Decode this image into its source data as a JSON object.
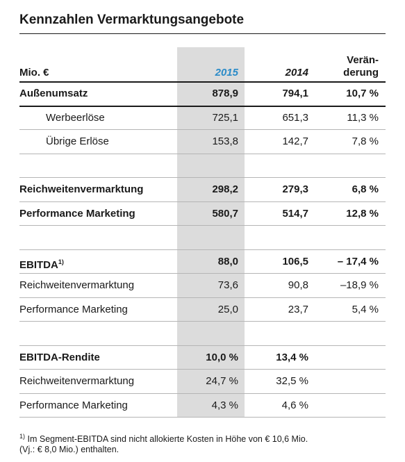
{
  "title": "Kennzahlen Vermarktungsangebote",
  "table": {
    "header": {
      "unit": "Mio. €",
      "col_2015": "2015",
      "col_2014": "2014",
      "change": [
        "Verän-",
        "derung"
      ]
    },
    "groups": [
      [
        {
          "label": "Außenumsatz",
          "bold": true,
          "indent": false,
          "cells": [
            "878,9",
            "794,1",
            "10,7 %"
          ]
        },
        {
          "label": "Werbeerlöse",
          "bold": false,
          "indent": true,
          "cells": [
            "725,1",
            "651,3",
            "11,3 %"
          ]
        },
        {
          "label": "Übrige Erlöse",
          "bold": false,
          "indent": true,
          "cells": [
            "153,8",
            "142,7",
            "7,8 %"
          ]
        }
      ],
      [
        {
          "label": "Reichweitenvermarktung",
          "bold": true,
          "indent": false,
          "cells": [
            "298,2",
            "279,3",
            "6,8 %"
          ]
        },
        {
          "label": "Performance Marketing",
          "bold": true,
          "indent": false,
          "cells": [
            "580,7",
            "514,7",
            "12,8 %"
          ]
        }
      ],
      [
        {
          "label": "EBITDA",
          "marker": "1)",
          "bold": true,
          "indent": false,
          "cells": [
            "88,0",
            "106,5",
            "– 17,4 %"
          ]
        },
        {
          "label": "Reichweitenvermarktung",
          "bold": false,
          "indent": false,
          "cells": [
            "73,6",
            "90,8",
            "–18,9 %"
          ]
        },
        {
          "label": "Performance Marketing",
          "bold": false,
          "indent": false,
          "cells": [
            "25,0",
            "23,7",
            "5,4 %"
          ]
        }
      ],
      [
        {
          "label": "EBITDA-Rendite",
          "bold": true,
          "indent": false,
          "cells": [
            "10,0 %",
            "13,4 %"
          ]
        },
        {
          "label": "Reichweitenvermarktung",
          "bold": false,
          "indent": false,
          "cells": [
            "24,7 %",
            "32,5 %"
          ]
        },
        {
          "label": "Performance Marketing",
          "bold": false,
          "indent": false,
          "cells": [
            "4,3 %",
            "4,6 %"
          ]
        }
      ]
    ]
  },
  "footnote": {
    "marker": "1)",
    "lines": [
      "Im Segment-EBITDA sind nicht allokierte Kosten in Höhe von € 10,6 Mio.",
      "(Vj.: € 8,0 Mio.) enthalten."
    ]
  }
}
